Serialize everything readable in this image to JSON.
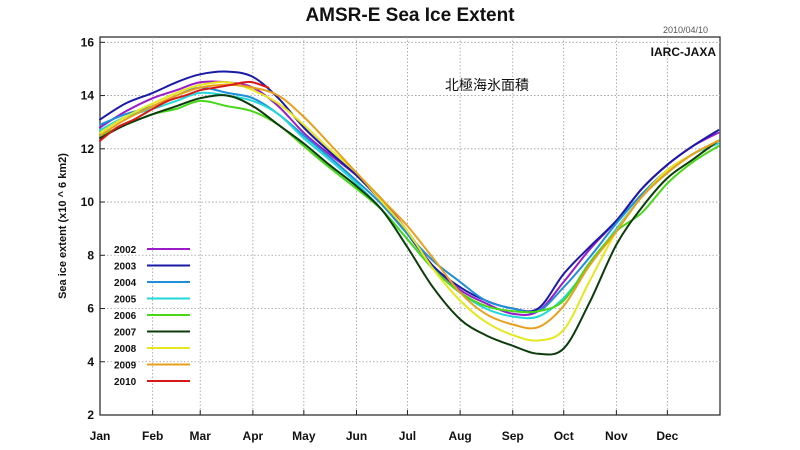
{
  "chart_data": {
    "type": "line",
    "title": "AMSR-E Sea Ice Extent",
    "date_stamp": "2010/04/10",
    "source_label": "IARC-JAXA",
    "japanese_title": "北極海氷面積",
    "xlabel": "",
    "ylabel": "Sea ice extent (x10 ^ 6 km2)",
    "ylim": [
      2,
      16.2
    ],
    "xlim": [
      0,
      365
    ],
    "y_ticks": [
      "2",
      "4",
      "6",
      "8",
      "10",
      "12",
      "14",
      "16"
    ],
    "x_ticks": [
      "Jan",
      "Feb",
      "Mar",
      "Apr",
      "May",
      "Jun",
      "Jul",
      "Aug",
      "Sep",
      "Oct",
      "Nov",
      "Dec"
    ],
    "grid": true,
    "legend_position": "lower-left inside",
    "series": [
      {
        "name": "2002",
        "color": "#9a1cc8",
        "x": [
          0,
          15,
          31,
          45,
          59,
          75,
          90,
          105,
          120,
          135,
          151,
          166,
          181,
          196,
          212,
          227,
          243,
          258,
          273,
          288,
          304,
          319,
          334,
          349,
          364
        ],
        "y": [
          12.8,
          13.4,
          13.9,
          14.2,
          14.5,
          14.5,
          14.3,
          13.6,
          12.6,
          11.8,
          11.0,
          10.1,
          8.9,
          7.6,
          6.7,
          6.2,
          5.8,
          5.9,
          7.0,
          8.2,
          9.3,
          10.5,
          11.4,
          12.1,
          12.6
        ]
      },
      {
        "name": "2003",
        "color": "#1a1aa8",
        "x": [
          0,
          15,
          31,
          45,
          59,
          75,
          90,
          105,
          120,
          135,
          151,
          166,
          181,
          196,
          212,
          227,
          243,
          258,
          273,
          288,
          304,
          319,
          334,
          349,
          364
        ],
        "y": [
          13.1,
          13.7,
          14.1,
          14.5,
          14.8,
          14.9,
          14.7,
          13.9,
          12.8,
          11.9,
          11.0,
          10.0,
          8.8,
          7.6,
          6.8,
          6.3,
          6.0,
          6.0,
          7.3,
          8.3,
          9.3,
          10.5,
          11.4,
          12.1,
          12.7
        ]
      },
      {
        "name": "2004",
        "color": "#1e8fd8",
        "x": [
          0,
          15,
          31,
          45,
          59,
          75,
          90,
          105,
          120,
          135,
          151,
          166,
          181,
          196,
          212,
          227,
          243,
          258,
          273,
          288,
          304,
          319,
          334,
          349,
          364
        ],
        "y": [
          12.9,
          13.3,
          13.6,
          14.0,
          14.3,
          14.1,
          13.9,
          13.3,
          12.5,
          11.7,
          10.8,
          9.9,
          8.8,
          7.8,
          7.0,
          6.3,
          6.0,
          5.9,
          6.8,
          7.9,
          9.2,
          10.3,
          11.2,
          11.8,
          12.3
        ]
      },
      {
        "name": "2005",
        "color": "#22d8d8",
        "x": [
          0,
          15,
          31,
          45,
          59,
          75,
          90,
          105,
          120,
          135,
          151,
          166,
          181,
          196,
          212,
          227,
          243,
          258,
          273,
          288,
          304,
          319,
          334,
          349,
          364
        ],
        "y": [
          12.7,
          13.2,
          13.5,
          13.8,
          14.1,
          14.0,
          13.8,
          13.3,
          12.4,
          11.6,
          10.7,
          9.7,
          8.6,
          7.5,
          6.6,
          6.0,
          5.7,
          5.7,
          6.4,
          7.6,
          9.0,
          10.2,
          11.1,
          11.8,
          12.2
        ]
      },
      {
        "name": "2006",
        "color": "#48d818",
        "x": [
          0,
          15,
          31,
          45,
          59,
          75,
          90,
          105,
          120,
          135,
          151,
          166,
          181,
          196,
          212,
          227,
          243,
          258,
          273,
          288,
          304,
          319,
          334,
          349,
          364
        ],
        "y": [
          12.5,
          12.9,
          13.3,
          13.5,
          13.8,
          13.6,
          13.4,
          12.9,
          12.1,
          11.3,
          10.5,
          9.7,
          8.6,
          7.5,
          6.6,
          6.1,
          5.9,
          5.9,
          6.3,
          7.7,
          8.9,
          9.6,
          10.7,
          11.5,
          12.1
        ]
      },
      {
        "name": "2007",
        "color": "#0c3c0c",
        "x": [
          0,
          15,
          31,
          45,
          59,
          75,
          90,
          105,
          120,
          135,
          151,
          166,
          181,
          196,
          212,
          227,
          243,
          258,
          273,
          288,
          304,
          319,
          334,
          349,
          364
        ],
        "y": [
          12.4,
          12.9,
          13.3,
          13.6,
          13.9,
          14.0,
          13.6,
          12.9,
          12.2,
          11.4,
          10.6,
          9.7,
          8.3,
          6.8,
          5.6,
          5.0,
          4.6,
          4.3,
          4.5,
          6.2,
          8.4,
          9.8,
          10.9,
          11.6,
          12.3
        ]
      },
      {
        "name": "2008",
        "color": "#e4e81c",
        "x": [
          0,
          15,
          31,
          45,
          59,
          75,
          90,
          105,
          120,
          135,
          151,
          166,
          181,
          196,
          212,
          227,
          243,
          258,
          273,
          288,
          304,
          319,
          334,
          349,
          364
        ],
        "y": [
          12.6,
          13.2,
          13.7,
          14.1,
          14.4,
          14.5,
          14.2,
          13.7,
          12.9,
          12.0,
          11.1,
          10.0,
          8.9,
          7.5,
          6.3,
          5.5,
          5.0,
          4.8,
          5.2,
          7.0,
          8.9,
          10.2,
          11.2,
          11.8,
          12.3
        ]
      },
      {
        "name": "2009",
        "color": "#e8a01c",
        "x": [
          0,
          15,
          31,
          45,
          59,
          75,
          90,
          105,
          120,
          135,
          151,
          166,
          181,
          196,
          212,
          227,
          243,
          258,
          273,
          288,
          304,
          319,
          334,
          349,
          364
        ],
        "y": [
          12.5,
          13.1,
          13.6,
          14.0,
          14.3,
          14.4,
          14.3,
          14.0,
          13.2,
          12.2,
          11.1,
          10.1,
          9.1,
          7.9,
          6.6,
          5.8,
          5.4,
          5.3,
          6.1,
          7.6,
          8.9,
          10.2,
          11.1,
          11.8,
          12.3
        ]
      },
      {
        "name": "2010",
        "color": "#d81818",
        "x": [
          0,
          10,
          20,
          31,
          40,
          50,
          59,
          68,
          77,
          85,
          90,
          99
        ],
        "y": [
          12.3,
          12.8,
          13.1,
          13.5,
          13.8,
          14.0,
          14.2,
          14.3,
          14.4,
          14.5,
          14.5,
          14.3
        ]
      }
    ]
  }
}
